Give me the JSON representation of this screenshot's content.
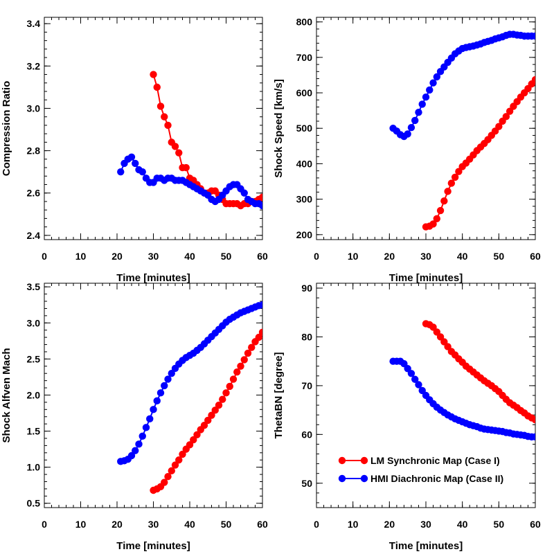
{
  "colors": {
    "case1": "#ff0000",
    "case2": "#0000ff",
    "axis": "#000000"
  },
  "legend": {
    "case1": "LM Synchronic Map (Case I)",
    "case2": "HMI Diachronic Map (Case II)"
  },
  "chart_data": [
    {
      "type": "scatter",
      "xlabel": "Time [minutes]",
      "ylabel": "Compression Ratio",
      "xlim": [
        0,
        60
      ],
      "ylim": [
        2.38,
        3.43
      ],
      "xticks": [
        0,
        10,
        20,
        30,
        40,
        50,
        60
      ],
      "xtick_labels": [
        "0",
        "10",
        "20",
        "30",
        "40",
        "50",
        "60"
      ],
      "yticks": [
        2.4,
        2.6,
        2.8,
        3.0,
        3.2,
        3.4
      ],
      "ytick_labels": [
        "2.4",
        "2.6",
        "2.8",
        "3.0",
        "3.2",
        "3.4"
      ],
      "series": [
        {
          "name": "LM Synchronic Map (Case I)",
          "color_key": "case1",
          "x": [
            30,
            31,
            32,
            33,
            34,
            35,
            36,
            37,
            38,
            39,
            40,
            41,
            42,
            43,
            44,
            45,
            46,
            47,
            48,
            49,
            50,
            51,
            52,
            53,
            54,
            55,
            56,
            57,
            58,
            59,
            60
          ],
          "y": [
            3.16,
            3.1,
            3.01,
            2.96,
            2.92,
            2.84,
            2.82,
            2.79,
            2.72,
            2.72,
            2.67,
            2.66,
            2.64,
            2.62,
            2.6,
            2.6,
            2.61,
            2.61,
            2.59,
            2.57,
            2.55,
            2.55,
            2.55,
            2.55,
            2.54,
            2.55,
            2.55,
            2.56,
            2.56,
            2.57,
            2.58
          ]
        },
        {
          "name": "HMI Diachronic Map (Case II)",
          "color_key": "case2",
          "x": [
            21,
            22,
            23,
            24,
            25,
            26,
            27,
            28,
            29,
            30,
            31,
            32,
            33,
            34,
            35,
            36,
            37,
            38,
            39,
            40,
            41,
            42,
            43,
            44,
            45,
            46,
            47,
            48,
            49,
            50,
            51,
            52,
            53,
            54,
            55,
            56,
            57,
            58,
            59,
            60
          ],
          "y": [
            2.7,
            2.74,
            2.76,
            2.77,
            2.74,
            2.71,
            2.7,
            2.67,
            2.65,
            2.65,
            2.67,
            2.67,
            2.66,
            2.67,
            2.67,
            2.66,
            2.66,
            2.66,
            2.65,
            2.64,
            2.63,
            2.62,
            2.61,
            2.6,
            2.59,
            2.57,
            2.56,
            2.57,
            2.59,
            2.61,
            2.63,
            2.64,
            2.64,
            2.62,
            2.6,
            2.57,
            2.56,
            2.55,
            2.55,
            2.54
          ]
        }
      ]
    },
    {
      "type": "scatter",
      "xlabel": "Time [minutes]",
      "ylabel": "Shock Speed [km/s]",
      "xlim": [
        0,
        60
      ],
      "ylim": [
        186,
        813
      ],
      "xticks": [
        0,
        10,
        20,
        30,
        40,
        50,
        60
      ],
      "xtick_labels": [
        "0",
        "10",
        "20",
        "30",
        "40",
        "50",
        "60"
      ],
      "yticks": [
        200,
        300,
        400,
        500,
        600,
        700,
        800
      ],
      "ytick_labels": [
        "200",
        "300",
        "400",
        "500",
        "600",
        "700",
        "800"
      ],
      "series": [
        {
          "name": "LM Synchronic Map (Case I)",
          "color_key": "case1",
          "x": [
            30,
            31,
            32,
            33,
            34,
            35,
            36,
            37,
            38,
            39,
            40,
            41,
            42,
            43,
            44,
            45,
            46,
            47,
            48,
            49,
            50,
            51,
            52,
            53,
            54,
            55,
            56,
            57,
            58,
            59,
            60
          ],
          "y": [
            222,
            224,
            230,
            245,
            268,
            295,
            322,
            345,
            362,
            378,
            392,
            402,
            413,
            425,
            437,
            447,
            457,
            468,
            480,
            492,
            505,
            520,
            533,
            548,
            562,
            575,
            588,
            600,
            612,
            625,
            637
          ]
        },
        {
          "name": "HMI Diachronic Map (Case II)",
          "color_key": "case2",
          "x": [
            21,
            22,
            23,
            24,
            25,
            26,
            27,
            28,
            29,
            30,
            31,
            32,
            33,
            34,
            35,
            36,
            37,
            38,
            39,
            40,
            41,
            42,
            43,
            44,
            45,
            46,
            47,
            48,
            49,
            50,
            51,
            52,
            53,
            54,
            55,
            56,
            57,
            58,
            59,
            60
          ],
          "y": [
            500,
            492,
            482,
            477,
            484,
            502,
            522,
            545,
            568,
            588,
            608,
            628,
            645,
            660,
            673,
            686,
            698,
            710,
            718,
            725,
            728,
            730,
            732,
            735,
            738,
            742,
            745,
            748,
            752,
            755,
            758,
            762,
            765,
            765,
            763,
            762,
            760,
            760,
            760,
            760
          ]
        }
      ]
    },
    {
      "type": "scatter",
      "xlabel": "Time [minutes]",
      "ylabel": "Shock Alfven Mach",
      "xlim": [
        0,
        60
      ],
      "ylim": [
        0.44,
        3.55
      ],
      "xticks": [
        0,
        10,
        20,
        30,
        40,
        50,
        60
      ],
      "xtick_labels": [
        "0",
        "10",
        "20",
        "30",
        "40",
        "50",
        "60"
      ],
      "yticks": [
        0.5,
        1.0,
        1.5,
        2.0,
        2.5,
        3.0,
        3.5
      ],
      "ytick_labels": [
        "0.5",
        "1.0",
        "1.5",
        "2.0",
        "2.5",
        "3.0",
        "3.5"
      ],
      "series": [
        {
          "name": "LM Synchronic Map (Case I)",
          "color_key": "case1",
          "x": [
            30,
            31,
            32,
            33,
            34,
            35,
            36,
            37,
            38,
            39,
            40,
            41,
            42,
            43,
            44,
            45,
            46,
            47,
            48,
            49,
            50,
            51,
            52,
            53,
            54,
            55,
            56,
            57,
            58,
            59,
            60
          ],
          "y": [
            0.68,
            0.7,
            0.73,
            0.79,
            0.87,
            0.95,
            1.03,
            1.1,
            1.18,
            1.25,
            1.31,
            1.38,
            1.45,
            1.52,
            1.58,
            1.65,
            1.72,
            1.79,
            1.86,
            1.94,
            2.03,
            2.12,
            2.22,
            2.32,
            2.4,
            2.49,
            2.58,
            2.66,
            2.74,
            2.8,
            2.87
          ]
        },
        {
          "name": "HMI Diachronic Map (Case II)",
          "color_key": "case2",
          "x": [
            21,
            22,
            23,
            24,
            25,
            26,
            27,
            28,
            29,
            30,
            31,
            32,
            33,
            34,
            35,
            36,
            37,
            38,
            39,
            40,
            41,
            42,
            43,
            44,
            45,
            46,
            47,
            48,
            49,
            50,
            51,
            52,
            53,
            54,
            55,
            56,
            57,
            58,
            59,
            60
          ],
          "y": [
            1.08,
            1.09,
            1.11,
            1.16,
            1.23,
            1.32,
            1.43,
            1.55,
            1.67,
            1.8,
            1.92,
            2.03,
            2.13,
            2.22,
            2.3,
            2.37,
            2.43,
            2.48,
            2.52,
            2.55,
            2.58,
            2.62,
            2.66,
            2.71,
            2.76,
            2.81,
            2.86,
            2.91,
            2.96,
            3.01,
            3.05,
            3.08,
            3.11,
            3.14,
            3.16,
            3.18,
            3.2,
            3.22,
            3.24,
            3.25
          ]
        }
      ]
    },
    {
      "type": "scatter",
      "xlabel": "Time [minutes]",
      "ylabel": "ThetaBN [degree]",
      "xlim": [
        0,
        60
      ],
      "ylim": [
        45,
        91
      ],
      "xticks": [
        0,
        10,
        20,
        30,
        40,
        50,
        60
      ],
      "xtick_labels": [
        "0",
        "10",
        "20",
        "30",
        "40",
        "50",
        "60"
      ],
      "yticks": [
        50,
        60,
        70,
        80,
        90
      ],
      "ytick_labels": [
        "50",
        "60",
        "70",
        "80",
        "90"
      ],
      "legend_position": "bottom-right",
      "series": [
        {
          "name": "LM Synchronic Map (Case I)",
          "color_key": "case1",
          "x": [
            30,
            31,
            32,
            33,
            34,
            35,
            36,
            37,
            38,
            39,
            40,
            41,
            42,
            43,
            44,
            45,
            46,
            47,
            48,
            49,
            50,
            51,
            52,
            53,
            54,
            55,
            56,
            57,
            58,
            59,
            60
          ],
          "y": [
            82.7,
            82.5,
            82.0,
            81.0,
            80.0,
            79.0,
            78.0,
            77.0,
            76.3,
            75.5,
            74.8,
            74.0,
            73.4,
            72.8,
            72.2,
            71.6,
            71.0,
            70.5,
            70.0,
            69.4,
            68.8,
            68.0,
            67.2,
            66.5,
            66.0,
            65.5,
            64.9,
            64.4,
            63.8,
            63.4,
            63.0
          ]
        },
        {
          "name": "HMI Diachronic Map (Case II)",
          "color_key": "case2",
          "x": [
            21,
            22,
            23,
            24,
            25,
            26,
            27,
            28,
            29,
            30,
            31,
            32,
            33,
            34,
            35,
            36,
            37,
            38,
            39,
            40,
            41,
            42,
            43,
            44,
            45,
            46,
            47,
            48,
            49,
            50,
            51,
            52,
            53,
            54,
            55,
            56,
            57,
            58,
            59,
            60
          ],
          "y": [
            75.0,
            75.0,
            75.0,
            74.5,
            73.5,
            72.5,
            71.3,
            70.2,
            69.0,
            68.0,
            67.1,
            66.3,
            65.6,
            65.0,
            64.5,
            64.0,
            63.6,
            63.2,
            62.9,
            62.6,
            62.3,
            62.0,
            61.8,
            61.6,
            61.3,
            61.1,
            61.0,
            60.9,
            60.8,
            60.7,
            60.6,
            60.4,
            60.3,
            60.1,
            60.0,
            59.9,
            59.8,
            59.6,
            59.5,
            59.5
          ]
        }
      ]
    }
  ]
}
